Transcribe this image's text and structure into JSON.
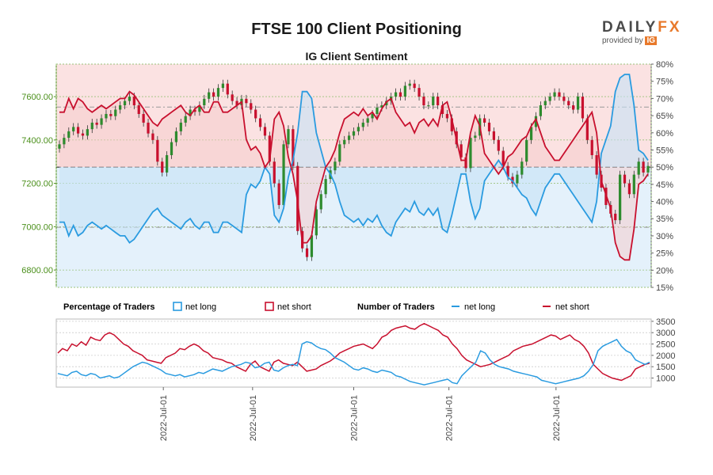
{
  "header": {
    "title": "FTSE 100 Client Positioning",
    "subtitle": "IG Client Sentiment"
  },
  "brand": {
    "name_main": "DAILY",
    "name_accent": "FX",
    "provided_by": "provided by",
    "provider": "IG"
  },
  "colors": {
    "long": "#2a9be0",
    "short": "#c8102e",
    "candle_up": "#2e8b2e",
    "candle_down": "#c8102e",
    "upper_fill": "#fbe2e2",
    "lower_fill": "#e4f1fb",
    "left_axis": "#4a8f1a"
  },
  "chart_data": [
    {
      "type": "candlestick+line",
      "name": "price-and-sentiment",
      "left_axis": {
        "ticks": [
          6800,
          7000,
          7200,
          7400,
          7600
        ],
        "tick_labels": [
          "6800.00",
          "7000.00",
          "7200.00",
          "7400.00",
          "7600.00"
        ],
        "range": [
          6720,
          7750
        ]
      },
      "right_axis": {
        "ticks": [
          15,
          20,
          25,
          30,
          35,
          40,
          45,
          50,
          55,
          60,
          65,
          70,
          75,
          80
        ],
        "tick_labels": [
          "15%",
          "20%",
          "25%",
          "30%",
          "35%",
          "40%",
          "45%",
          "50%",
          "55%",
          "60%",
          "65%",
          "70%",
          "75%",
          "80%"
        ],
        "range": [
          15,
          80
        ]
      },
      "reference_levels_pct": [
        50,
        67.5,
        32.5
      ],
      "price_close": [
        7380,
        7410,
        7440,
        7460,
        7430,
        7420,
        7450,
        7480,
        7470,
        7500,
        7520,
        7510,
        7540,
        7560,
        7580,
        7600,
        7560,
        7520,
        7480,
        7430,
        7400,
        7300,
        7250,
        7330,
        7390,
        7440,
        7480,
        7510,
        7540,
        7530,
        7560,
        7590,
        7620,
        7600,
        7640,
        7660,
        7610,
        7580,
        7560,
        7590,
        7570,
        7540,
        7500,
        7460,
        7420,
        7300,
        7200,
        7100,
        7380,
        7450,
        7280,
        6980,
        6900,
        6860,
        6960,
        7080,
        7150,
        7220,
        7260,
        7300,
        7380,
        7400,
        7420,
        7440,
        7460,
        7480,
        7500,
        7520,
        7550,
        7560,
        7580,
        7600,
        7620,
        7600,
        7650,
        7660,
        7640,
        7600,
        7560,
        7560,
        7600,
        7560,
        7520,
        7500,
        7440,
        7380,
        7320,
        7270,
        7410,
        7420,
        7500,
        7480,
        7440,
        7400,
        7350,
        7280,
        7230,
        7200,
        7240,
        7300,
        7400,
        7460,
        7510,
        7560,
        7580,
        7600,
        7620,
        7600,
        7580,
        7560,
        7540,
        7600,
        7500,
        7400,
        7330,
        7240,
        7180,
        7100,
        7060,
        7030,
        7240,
        7200,
        7150,
        7240,
        7300,
        7250,
        7280
      ],
      "net_long_pct": [
        34,
        34,
        30,
        33,
        30,
        31,
        33,
        34,
        33,
        32,
        33,
        32,
        31,
        30,
        30,
        28,
        29,
        31,
        33,
        35,
        37,
        38,
        36,
        35,
        34,
        33,
        32,
        34,
        35,
        33,
        32,
        34,
        34,
        31,
        31,
        34,
        34,
        33,
        32,
        31,
        42,
        45,
        44,
        46,
        50,
        48,
        36,
        34,
        38,
        47,
        52,
        60,
        72,
        72,
        70,
        60,
        55,
        50,
        48,
        45,
        40,
        36,
        35,
        34,
        35,
        33,
        35,
        34,
        36,
        33,
        31,
        30,
        34,
        36,
        38,
        37,
        40,
        37,
        36,
        38,
        36,
        38,
        32,
        31,
        36,
        42,
        48,
        48,
        40,
        35,
        38,
        46,
        48,
        50,
        52,
        50,
        47,
        46,
        44,
        42,
        41,
        38,
        36,
        40,
        44,
        46,
        48,
        48,
        46,
        44,
        42,
        40,
        38,
        36,
        34,
        40,
        54,
        58,
        62,
        72,
        76,
        77,
        77,
        68,
        55,
        54,
        52
      ],
      "net_short_pct": [
        66,
        66,
        70,
        67,
        70,
        69,
        67,
        66,
        67,
        68,
        67,
        68,
        69,
        70,
        70,
        72,
        71,
        69,
        67,
        65,
        63,
        62,
        64,
        65,
        66,
        67,
        68,
        66,
        65,
        67,
        68,
        66,
        66,
        69,
        69,
        66,
        66,
        67,
        68,
        69,
        58,
        55,
        56,
        54,
        50,
        52,
        64,
        66,
        62,
        53,
        48,
        40,
        28,
        28,
        30,
        40,
        45,
        50,
        52,
        55,
        60,
        64,
        65,
        66,
        65,
        67,
        65,
        66,
        64,
        67,
        69,
        70,
        66,
        64,
        62,
        63,
        60,
        63,
        64,
        62,
        64,
        62,
        68,
        69,
        64,
        58,
        52,
        52,
        60,
        65,
        62,
        54,
        52,
        50,
        48,
        50,
        53,
        54,
        56,
        58,
        59,
        62,
        64,
        60,
        56,
        54,
        52,
        52,
        54,
        56,
        58,
        60,
        62,
        64,
        66,
        60,
        46,
        42,
        38,
        28,
        24,
        23,
        23,
        32,
        45,
        46,
        48
      ]
    },
    {
      "type": "line",
      "name": "number-of-traders",
      "right_axis": {
        "ticks": [
          1000,
          1500,
          2000,
          2500,
          3000,
          3500
        ],
        "tick_labels": [
          "1000",
          "1500",
          "2000",
          "2500",
          "3000",
          "3500"
        ],
        "range": [
          600,
          3600
        ]
      },
      "x_tick_labels": [
        "2022-Jul-01",
        "2022-Jul-01",
        "2022-Jul-01",
        "2022-Jul-01",
        "2022-Jul-01"
      ],
      "x_tick_positions": [
        0.18,
        0.33,
        0.5,
        0.66,
        0.84
      ],
      "net_long": [
        1200,
        1150,
        1100,
        1250,
        1300,
        1150,
        1100,
        1200,
        1150,
        1000,
        1050,
        1100,
        1000,
        1050,
        1200,
        1350,
        1500,
        1600,
        1700,
        1650,
        1550,
        1450,
        1350,
        1200,
        1150,
        1100,
        1150,
        1050,
        1100,
        1150,
        1250,
        1200,
        1300,
        1400,
        1350,
        1300,
        1400,
        1500,
        1550,
        1600,
        1700,
        1650,
        1450,
        1500,
        1650,
        1700,
        1350,
        1300,
        1450,
        1550,
        1600,
        1550,
        2500,
        2600,
        2550,
        2400,
        2300,
        2250,
        2100,
        1900,
        1800,
        1700,
        1550,
        1400,
        1350,
        1450,
        1400,
        1300,
        1250,
        1350,
        1300,
        1250,
        1100,
        1050,
        950,
        850,
        800,
        750,
        700,
        750,
        800,
        850,
        900,
        950,
        800,
        750,
        1100,
        1300,
        1500,
        1700,
        2200,
        2100,
        1800,
        1600,
        1500,
        1450,
        1400,
        1300,
        1250,
        1200,
        1150,
        1100,
        1050,
        900,
        850,
        800,
        750,
        800,
        850,
        900,
        950,
        1000,
        1100,
        1300,
        1600,
        2200,
        2400,
        2500,
        2600,
        2700,
        2400,
        2200,
        2100,
        1800,
        1700,
        1600,
        1700
      ],
      "net_short": [
        2100,
        2300,
        2200,
        2500,
        2400,
        2600,
        2450,
        2800,
        2700,
        2650,
        2900,
        3000,
        2900,
        2700,
        2500,
        2400,
        2200,
        2100,
        2000,
        1800,
        1750,
        1700,
        1650,
        1900,
        2000,
        2100,
        2300,
        2250,
        2400,
        2500,
        2400,
        2200,
        2100,
        1900,
        1850,
        1800,
        1700,
        1650,
        1500,
        1400,
        1300,
        1600,
        1750,
        1500,
        1400,
        1300,
        1700,
        1800,
        1650,
        1600,
        1550,
        1700,
        1500,
        1300,
        1350,
        1400,
        1550,
        1650,
        1750,
        1900,
        2100,
        2200,
        2300,
        2400,
        2450,
        2500,
        2400,
        2300,
        2500,
        2800,
        2900,
        3100,
        3200,
        3250,
        3300,
        3200,
        3150,
        3300,
        3400,
        3300,
        3200,
        3100,
        2900,
        2800,
        2500,
        2300,
        2000,
        1800,
        1700,
        1600,
        1500,
        1550,
        1600,
        1700,
        1800,
        1900,
        2000,
        2200,
        2300,
        2400,
        2450,
        2500,
        2600,
        2700,
        2800,
        2900,
        2850,
        2700,
        2800,
        2900,
        2700,
        2600,
        2400,
        2100,
        1600,
        1400,
        1200,
        1100,
        1000,
        950,
        900,
        1000,
        1100,
        1400,
        1500,
        1600,
        1650
      ]
    }
  ],
  "legend": {
    "percentage_heading": "Percentage of Traders",
    "number_heading": "Number of Traders",
    "net_long": "net long",
    "net_short": "net short"
  }
}
